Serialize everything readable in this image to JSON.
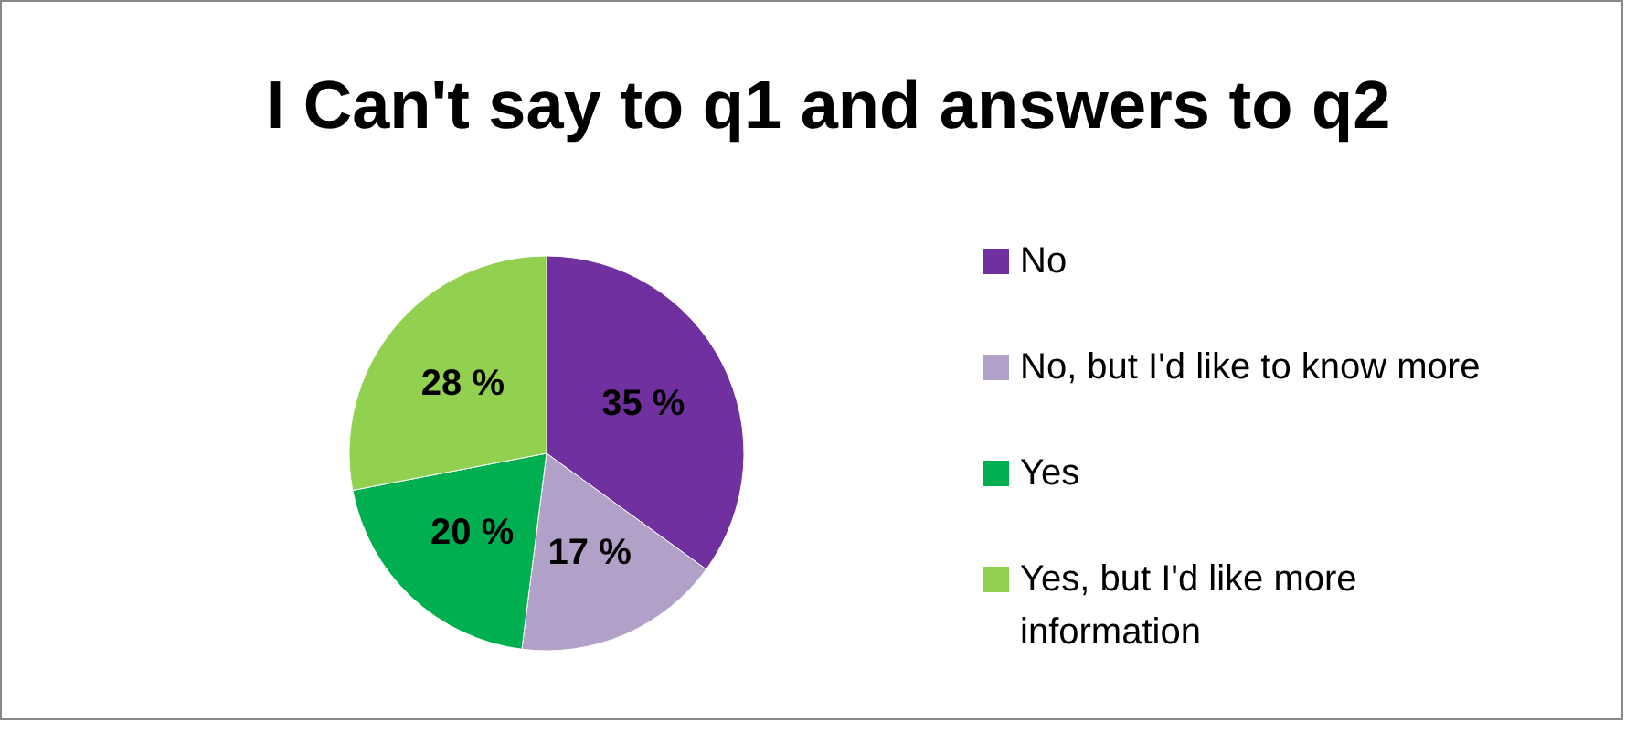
{
  "chart_data": {
    "type": "pie",
    "title": "I Can't say to q1 and answers to q2",
    "categories": [
      "No",
      "No, but I'd like to know more",
      "Yes",
      "Yes, but I'd like more information"
    ],
    "values": [
      35,
      17,
      20,
      28
    ],
    "colors": [
      "#7030a0",
      "#b1a0c7",
      "#00b050",
      "#92d050"
    ],
    "value_labels": [
      "35 %",
      "17 %",
      "20 %",
      "28 %"
    ],
    "legend": "right"
  }
}
